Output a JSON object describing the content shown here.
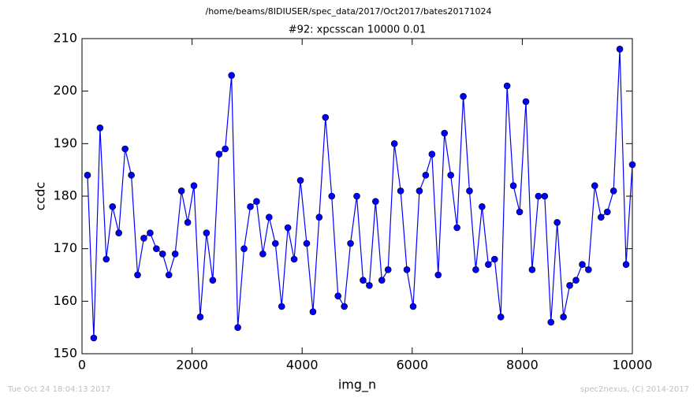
{
  "chart_data": {
    "type": "line",
    "suptitle": "/home/beams/8IDIUSER/spec_data/2017/Oct2017/bates20171024",
    "title": "#92: xpcsscan 10000 0.01",
    "xlabel": "img_n",
    "ylabel": "ccdc",
    "footer_left": "Tue Oct 24 18:04:13 2017",
    "footer_right": "spec2nexus, (C) 2014-2017",
    "x": [
      100,
      214,
      328,
      441,
      555,
      669,
      783,
      897,
      1010,
      1124,
      1238,
      1352,
      1465,
      1579,
      1693,
      1807,
      1921,
      2034,
      2148,
      2262,
      2376,
      2490,
      2603,
      2717,
      2831,
      2945,
      3059,
      3172,
      3286,
      3400,
      3514,
      3628,
      3741,
      3855,
      3969,
      4083,
      4197,
      4310,
      4424,
      4538,
      4652,
      4766,
      4879,
      4993,
      5107,
      5221,
      5334,
      5448,
      5562,
      5676,
      5790,
      5903,
      6017,
      6131,
      6245,
      6359,
      6472,
      6586,
      6700,
      6814,
      6928,
      7041,
      7155,
      7269,
      7383,
      7497,
      7610,
      7724,
      7838,
      7952,
      8066,
      8179,
      8293,
      8407,
      8521,
      8634,
      8748,
      8862,
      8976,
      9090,
      9203,
      9317,
      9431,
      9545,
      9659,
      9772,
      9886,
      10000
    ],
    "series": [
      {
        "color": "#0000ff",
        "values": [
          184,
          153,
          193,
          168,
          178,
          173,
          189,
          184,
          165,
          172,
          173,
          170,
          169,
          165,
          169,
          181,
          175,
          182,
          157,
          173,
          164,
          188,
          189,
          203,
          155,
          170,
          178,
          179,
          169,
          176,
          171,
          159,
          174,
          168,
          183,
          171,
          158,
          176,
          195,
          180,
          161,
          159,
          171,
          180,
          164,
          163,
          179,
          164,
          166,
          190,
          181,
          166,
          159,
          181,
          184,
          188,
          165,
          192,
          184,
          174,
          199,
          181,
          166,
          178,
          167,
          168,
          157,
          201,
          182,
          177,
          198,
          166,
          180,
          180,
          156,
          175,
          157,
          163,
          164,
          167,
          166,
          182,
          176,
          177,
          181,
          208,
          167,
          186
        ]
      }
    ],
    "xlim": [
      0,
      10000
    ],
    "xticks": [
      0,
      2000,
      4000,
      6000,
      8000,
      10000
    ],
    "ylim": [
      150,
      210
    ],
    "yticks": [
      150,
      160,
      170,
      180,
      190,
      200,
      210
    ]
  }
}
